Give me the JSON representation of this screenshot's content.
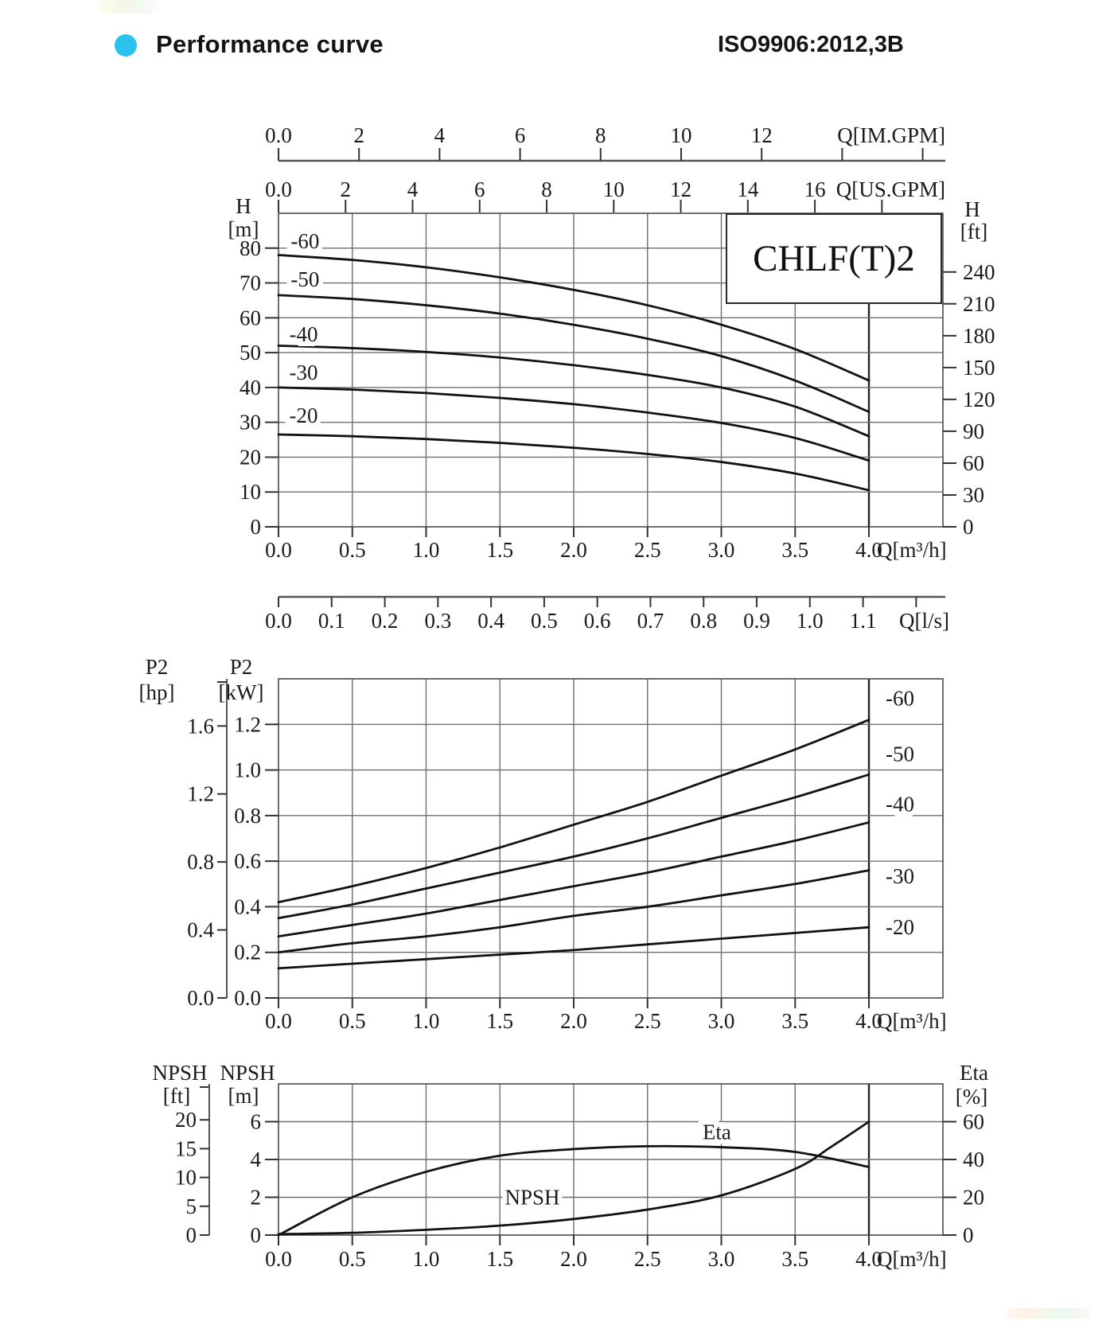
{
  "header": {
    "title": "Performance curve",
    "standard": "ISO9906:2012,3B",
    "accent_color": "#29c3ee"
  },
  "model_box": {
    "label": "CHLF(T)2"
  },
  "chart_data": [
    {
      "id": "head-vs-flow",
      "type": "line",
      "x_axis": {
        "label": "Q[m³/h]",
        "tick_labels": [
          "0.0",
          "0.5",
          "1.0",
          "1.5",
          "2.0",
          "2.5",
          "3.0",
          "3.5",
          "4.0"
        ],
        "tick_values": [
          0,
          0.5,
          1,
          1.5,
          2,
          2.5,
          3,
          3.5,
          4
        ],
        "range": [
          0,
          4.5
        ]
      },
      "top_axes": [
        {
          "label": "Q[IM.GPM]",
          "tick_labels": [
            "0.0",
            "2",
            "4",
            "6",
            "8",
            "10",
            "12"
          ],
          "tick_values": [
            0,
            2,
            4,
            6,
            8,
            10,
            12
          ],
          "extra_tick_values": [
            14,
            16
          ],
          "units_per_m3h": 3.666
        },
        {
          "label": "Q[US.GPM]",
          "tick_labels": [
            "0.0",
            "2",
            "4",
            "6",
            "8",
            "10",
            "12",
            "14",
            "16"
          ],
          "tick_values": [
            0,
            2,
            4,
            6,
            8,
            10,
            12,
            14,
            16
          ],
          "extra_tick_values": [
            18
          ],
          "units_per_m3h": 4.403
        }
      ],
      "below_axes": [
        {
          "label": "Q[l/s]",
          "tick_labels": [
            "0.0",
            "0.1",
            "0.2",
            "0.3",
            "0.4",
            "0.5",
            "0.6",
            "0.7",
            "0.8",
            "0.9",
            "1.0",
            "1.1"
          ],
          "tick_values": [
            0,
            0.1,
            0.2,
            0.3,
            0.4,
            0.5,
            0.6,
            0.7,
            0.8,
            0.9,
            1.0,
            1.1
          ],
          "extra_tick_values": [
            1.2
          ],
          "units_per_m3h": 0.27778
        }
      ],
      "y_left": {
        "name": "H",
        "unit": "[m]",
        "tick_labels": [
          "0",
          "10",
          "20",
          "30",
          "40",
          "50",
          "60",
          "70",
          "80"
        ],
        "tick_values": [
          0,
          10,
          20,
          30,
          40,
          50,
          60,
          70,
          80
        ],
        "range": [
          0,
          90
        ],
        "gridline_values": [
          10,
          20,
          30,
          40,
          50,
          60,
          70,
          80
        ]
      },
      "y_right": {
        "name": "H",
        "unit": "[ft]",
        "tick_labels": [
          "0",
          "30",
          "60",
          "90",
          "120",
          "150",
          "180",
          "210",
          "240"
        ],
        "tick_values": [
          0,
          30,
          60,
          90,
          120,
          150,
          180,
          210,
          240
        ],
        "m_per_unit": 0.3048
      },
      "series": [
        {
          "name": "-60",
          "points": [
            [
              0,
              78
            ],
            [
              0.5,
              76.6
            ],
            [
              1,
              74.5
            ],
            [
              1.5,
              71.6
            ],
            [
              2,
              68
            ],
            [
              2.5,
              63.6
            ],
            [
              3,
              58
            ],
            [
              3.5,
              51
            ],
            [
              4,
              42
            ]
          ]
        },
        {
          "name": "-50",
          "points": [
            [
              0,
              66.5
            ],
            [
              0.5,
              65.4
            ],
            [
              1,
              63.6
            ],
            [
              1.5,
              61.2
            ],
            [
              2,
              58
            ],
            [
              2.5,
              54
            ],
            [
              3,
              49
            ],
            [
              3.5,
              42
            ],
            [
              4,
              33
            ]
          ]
        },
        {
          "name": "-40",
          "points": [
            [
              0,
              52
            ],
            [
              0.5,
              51.3
            ],
            [
              1,
              50.2
            ],
            [
              1.5,
              48.6
            ],
            [
              2,
              46.4
            ],
            [
              2.5,
              43.6
            ],
            [
              3,
              40
            ],
            [
              3.5,
              34.5
            ],
            [
              4,
              26
            ]
          ]
        },
        {
          "name": "-30",
          "points": [
            [
              0,
              40
            ],
            [
              0.5,
              39.4
            ],
            [
              1,
              38.4
            ],
            [
              1.5,
              37
            ],
            [
              2,
              35.2
            ],
            [
              2.5,
              32.8
            ],
            [
              3,
              29.8
            ],
            [
              3.5,
              25.5
            ],
            [
              4,
              19
            ]
          ]
        },
        {
          "name": "-20",
          "points": [
            [
              0,
              26.5
            ],
            [
              0.5,
              26
            ],
            [
              1,
              25.2
            ],
            [
              1.5,
              24.1
            ],
            [
              2,
              22.7
            ],
            [
              2.5,
              20.9
            ],
            [
              3,
              18.6
            ],
            [
              3.5,
              15.3
            ],
            [
              4,
              10.5
            ]
          ]
        }
      ],
      "curve_labels": [
        {
          "text": "-60",
          "x": 0.18,
          "y": 82
        },
        {
          "text": "-50",
          "x": 0.18,
          "y": 71
        },
        {
          "text": "-40",
          "x": 0.17,
          "y": 55.3
        },
        {
          "text": "-30",
          "x": 0.17,
          "y": 44.3
        },
        {
          "text": "-20",
          "x": 0.17,
          "y": 32
        }
      ]
    },
    {
      "id": "power-vs-flow",
      "type": "line",
      "x_axis": {
        "label": "Q[m³/h]",
        "tick_labels": [
          "0.0",
          "0.5",
          "1.0",
          "1.5",
          "2.0",
          "2.5",
          "3.0",
          "3.5",
          "4.0"
        ],
        "tick_values": [
          0,
          0.5,
          1,
          1.5,
          2,
          2.5,
          3,
          3.5,
          4
        ],
        "range": [
          0,
          4.5
        ]
      },
      "y_left": {
        "name": "P2",
        "unit": "[kW]",
        "tick_labels": [
          "0.0",
          "0.2",
          "0.4",
          "0.6",
          "0.8",
          "1.0",
          "1.2"
        ],
        "tick_values": [
          0,
          0.2,
          0.4,
          0.6,
          0.8,
          1.0,
          1.2
        ],
        "range": [
          0,
          1.4
        ],
        "gridline_values": [
          0.2,
          0.4,
          0.6,
          0.8,
          1.0,
          1.2
        ]
      },
      "y_outer_left": {
        "name": "P2",
        "unit": "[hp]",
        "tick_labels": [
          "0.0",
          "0.4",
          "0.8",
          "1.2",
          "1.6"
        ],
        "tick_values": [
          0,
          0.4,
          0.8,
          1.2,
          1.6
        ],
        "left_unit_per_unit": 0.7457
      },
      "series": [
        {
          "name": "-60",
          "points": [
            [
              0,
              0.42
            ],
            [
              0.5,
              0.49
            ],
            [
              1,
              0.57
            ],
            [
              1.5,
              0.66
            ],
            [
              2,
              0.76
            ],
            [
              2.5,
              0.86
            ],
            [
              3,
              0.975
            ],
            [
              3.5,
              1.09
            ],
            [
              4,
              1.22
            ]
          ]
        },
        {
          "name": "-50",
          "points": [
            [
              0,
              0.35
            ],
            [
              0.5,
              0.41
            ],
            [
              1,
              0.48
            ],
            [
              1.5,
              0.55
            ],
            [
              2,
              0.62
            ],
            [
              2.5,
              0.7
            ],
            [
              3,
              0.79
            ],
            [
              3.5,
              0.88
            ],
            [
              4,
              0.98
            ]
          ]
        },
        {
          "name": "-40",
          "points": [
            [
              0,
              0.27
            ],
            [
              0.5,
              0.32
            ],
            [
              1,
              0.37
            ],
            [
              1.5,
              0.43
            ],
            [
              2,
              0.49
            ],
            [
              2.5,
              0.55
            ],
            [
              3,
              0.62
            ],
            [
              3.5,
              0.69
            ],
            [
              4,
              0.77
            ]
          ]
        },
        {
          "name": "-30",
          "points": [
            [
              0,
              0.2
            ],
            [
              0.5,
              0.24
            ],
            [
              1,
              0.27
            ],
            [
              1.5,
              0.31
            ],
            [
              2,
              0.36
            ],
            [
              2.5,
              0.4
            ],
            [
              3,
              0.45
            ],
            [
              3.5,
              0.5
            ],
            [
              4,
              0.56
            ]
          ]
        },
        {
          "name": "-20",
          "points": [
            [
              0,
              0.13
            ],
            [
              0.5,
              0.15
            ],
            [
              1,
              0.17
            ],
            [
              1.5,
              0.19
            ],
            [
              2,
              0.21
            ],
            [
              2.5,
              0.235
            ],
            [
              3,
              0.26
            ],
            [
              3.5,
              0.285
            ],
            [
              4,
              0.31
            ]
          ]
        }
      ],
      "curve_labels": [
        {
          "text": "-60",
          "x": 4.21,
          "y": 1.315
        },
        {
          "text": "-50",
          "x": 4.21,
          "y": 1.07
        },
        {
          "text": "-40",
          "x": 4.21,
          "y": 0.85
        },
        {
          "text": "-30",
          "x": 4.21,
          "y": 0.535
        },
        {
          "text": "-20",
          "x": 4.21,
          "y": 0.31
        }
      ]
    },
    {
      "id": "npsh-eta-vs-flow",
      "type": "line",
      "x_axis": {
        "label": "Q[m³/h]",
        "tick_labels": [
          "0.0",
          "0.5",
          "1.0",
          "1.5",
          "2.0",
          "2.5",
          "3.0",
          "3.5",
          "4.0"
        ],
        "tick_values": [
          0,
          0.5,
          1,
          1.5,
          2,
          2.5,
          3,
          3.5,
          4
        ],
        "range": [
          0,
          4.5
        ]
      },
      "y_left": {
        "name": "NPSH",
        "unit": "[m]",
        "tick_labels": [
          "0",
          "2",
          "4",
          "6"
        ],
        "tick_values": [
          0,
          2,
          4,
          6
        ],
        "range": [
          0,
          8
        ],
        "gridline_values": [
          2,
          4,
          6
        ]
      },
      "y_outer_left": {
        "name": "NPSH",
        "unit": "[ft]",
        "tick_labels": [
          "0",
          "5",
          "10",
          "15",
          "20"
        ],
        "tick_values": [
          0,
          5,
          10,
          15,
          20
        ],
        "left_unit_per_unit": 0.3048
      },
      "y_right": {
        "name": "Eta",
        "unit": "[%]",
        "tick_labels": [
          "0",
          "20",
          "40",
          "60"
        ],
        "tick_values": [
          0,
          20,
          40,
          60
        ],
        "m_per_unit": 0.1
      },
      "series": [
        {
          "name": "NPSH",
          "axis": "left",
          "points": [
            [
              0,
              0.05
            ],
            [
              0.5,
              0.12
            ],
            [
              1,
              0.28
            ],
            [
              1.5,
              0.5
            ],
            [
              2,
              0.85
            ],
            [
              2.5,
              1.35
            ],
            [
              3,
              2.1
            ],
            [
              3.5,
              3.5
            ],
            [
              3.75,
              4.7
            ],
            [
              4,
              6.0
            ]
          ]
        },
        {
          "name": "Eta",
          "axis": "right",
          "points": [
            [
              0,
              0
            ],
            [
              0.5,
              20
            ],
            [
              1,
              33.5
            ],
            [
              1.5,
              42
            ],
            [
              2,
              45.5
            ],
            [
              2.5,
              47
            ],
            [
              3,
              46.5
            ],
            [
              3.5,
              44
            ],
            [
              4,
              36
            ]
          ]
        }
      ],
      "curve_labels": [
        {
          "text": "Eta",
          "x": 2.97,
          "y": 5.45
        },
        {
          "text": "NPSH",
          "x": 1.72,
          "y": 2.0
        }
      ]
    }
  ]
}
